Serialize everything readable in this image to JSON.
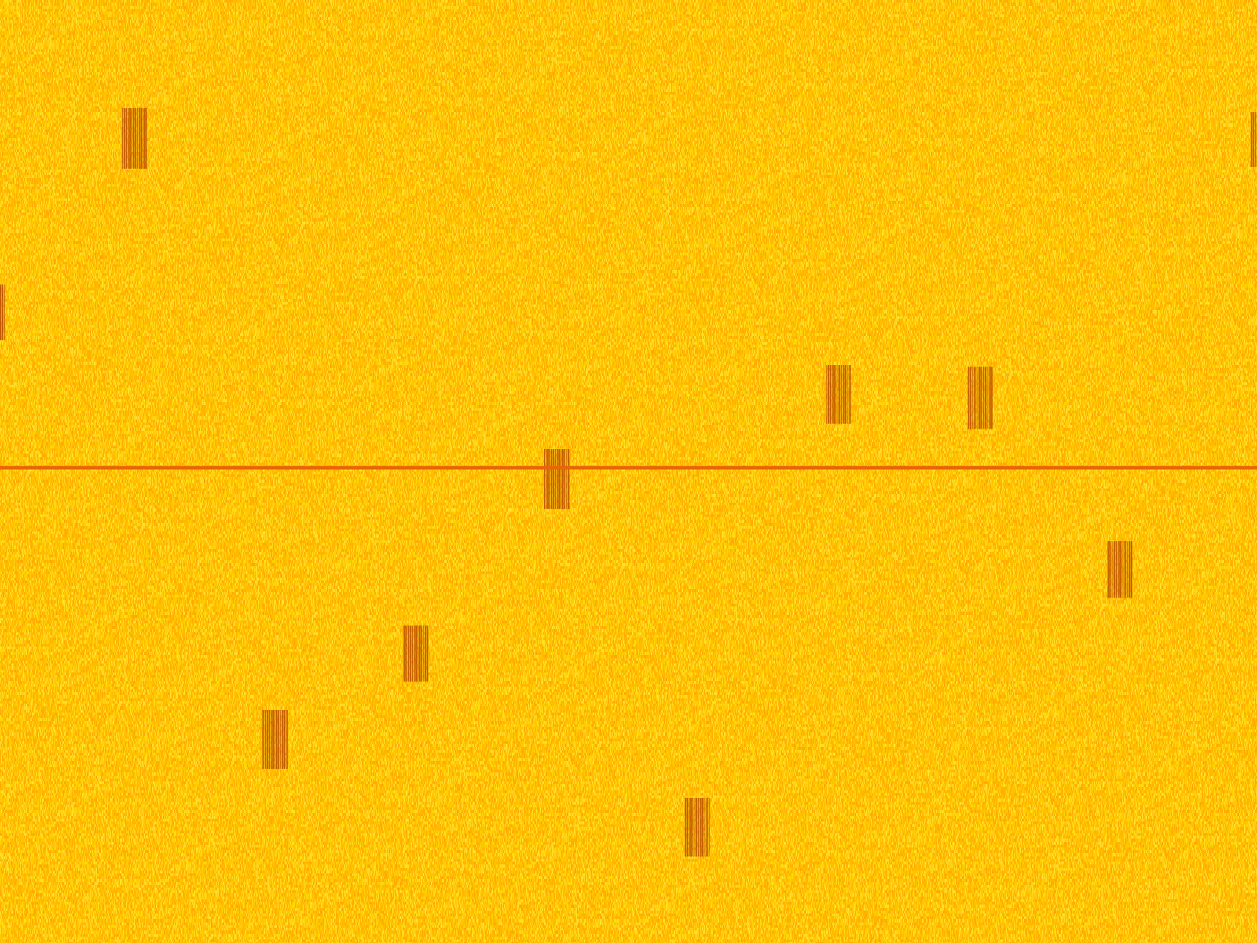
{
  "chart_data": {
    "type": "spectrogram",
    "xlim": [
      0,
      1
    ],
    "ylim": [
      0,
      1
    ],
    "xticks": [],
    "yticks": [],
    "tick_labels": false,
    "grid": false,
    "color": "#ffc400",
    "line": {
      "y": 0.496,
      "color": "#e8650a"
    },
    "bursts": {
      "color": "#b84a00",
      "boxes": [
        {
          "x0": 0.097,
          "x1": 0.117,
          "y0": 0.115,
          "y1": 0.179
        },
        {
          "x0": 0.0,
          "x1": 0.004,
          "y0": 0.302,
          "y1": 0.361
        },
        {
          "x0": 0.995,
          "x1": 1.0,
          "y0": 0.119,
          "y1": 0.177
        },
        {
          "x0": 0.657,
          "x1": 0.677,
          "y0": 0.387,
          "y1": 0.449
        },
        {
          "x0": 0.77,
          "x1": 0.79,
          "y0": 0.389,
          "y1": 0.455
        },
        {
          "x0": 0.433,
          "x1": 0.453,
          "y0": 0.476,
          "y1": 0.54
        },
        {
          "x0": 0.881,
          "x1": 0.901,
          "y0": 0.574,
          "y1": 0.634
        },
        {
          "x0": 0.321,
          "x1": 0.341,
          "y0": 0.663,
          "y1": 0.723
        },
        {
          "x0": 0.209,
          "x1": 0.228,
          "y0": 0.753,
          "y1": 0.815
        },
        {
          "x0": 0.545,
          "x1": 0.565,
          "y0": 0.846,
          "y1": 0.908
        }
      ]
    }
  }
}
